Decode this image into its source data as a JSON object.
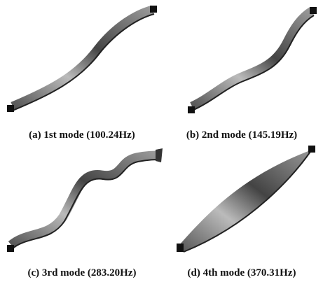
{
  "panels": [
    {
      "caption": "(a) 1st mode (100.24Hz)"
    },
    {
      "caption": "(b) 2nd mode (145.19Hz)"
    },
    {
      "caption": "(c) 3rd mode (283.20Hz)"
    },
    {
      "caption": "(d) 4th mode (370.31Hz)"
    }
  ]
}
